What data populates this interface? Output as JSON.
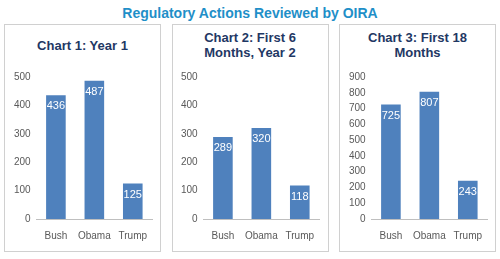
{
  "title": "Regulatory Actions Reviewed by OIRA",
  "chart_data": [
    {
      "type": "bar",
      "title": "Chart 1: Year 1",
      "categories": [
        "Bush",
        "Obama",
        "Trump"
      ],
      "values": [
        436,
        487,
        125
      ],
      "color": "#4f81bd",
      "ylim": [
        0,
        500
      ],
      "yticks": [
        0,
        100,
        200,
        300,
        400,
        500
      ],
      "grid": false,
      "data_labels": true
    },
    {
      "type": "bar",
      "title": "Chart 2: First 6 Months, Year 2",
      "categories": [
        "Bush",
        "Obama",
        "Trump"
      ],
      "values": [
        289,
        320,
        118
      ],
      "color": "#4f81bd",
      "ylim": [
        0,
        500
      ],
      "yticks": [
        0,
        100,
        200,
        300,
        400,
        500
      ],
      "grid": false,
      "data_labels": true
    },
    {
      "type": "bar",
      "title": "Chart 3: First 18 Months",
      "categories": [
        "Bush",
        "Obama",
        "Trump"
      ],
      "values": [
        725,
        807,
        243
      ],
      "color": "#4f81bd",
      "ylim": [
        0,
        900
      ],
      "yticks": [
        0,
        100,
        200,
        300,
        400,
        500,
        600,
        700,
        800,
        900
      ],
      "grid": false,
      "data_labels": true
    }
  ]
}
